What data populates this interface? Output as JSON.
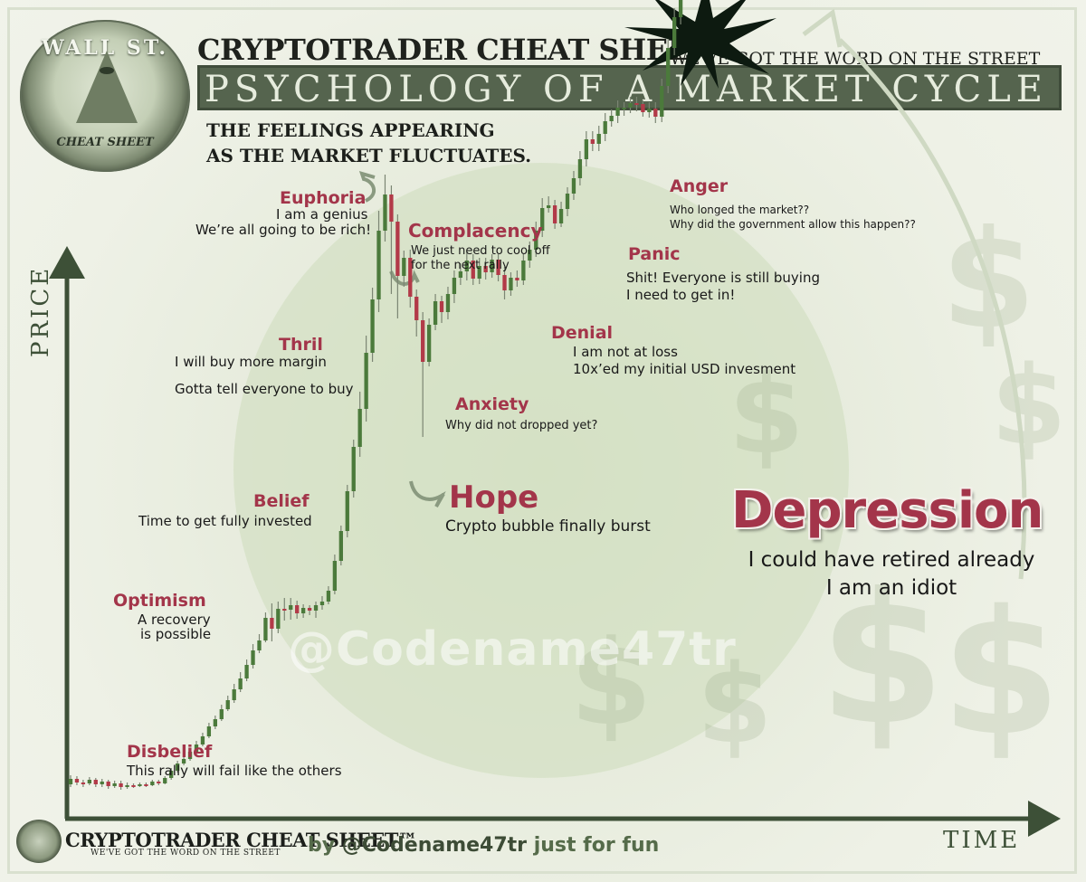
{
  "header": {
    "seal_top": "WALL ST.",
    "seal_bottom": "CHEAT SHEET",
    "title": "CRYPTOTRADER CHEAT SHEE",
    "tagline": "WE'VE GOT THE WORD ON THE STREET",
    "band": "PSYCHOLOGY OF A MARKET CYCLE",
    "subtitle_line1": "THE FEELINGS APPEARING",
    "subtitle_line2": "AS THE MARKET FLUCTUATES."
  },
  "colors": {
    "accent_label": "#a3354a",
    "candle_up": "#4b7a3b",
    "candle_down": "#b23a48",
    "axis": "#3d5037",
    "band": "#55644e"
  },
  "chart_data": {
    "type": "candlestick",
    "x_label": "TIME",
    "y_label": "PRICE",
    "x_ticks": [],
    "y_ticks": [],
    "grid": false,
    "legend": "none",
    "candles": [
      [
        38,
        44,
        35,
        48
      ],
      [
        44,
        40,
        37,
        47
      ],
      [
        40,
        39,
        35,
        43
      ],
      [
        39,
        43,
        37,
        46
      ],
      [
        43,
        38,
        35,
        45
      ],
      [
        38,
        41,
        35,
        44
      ],
      [
        41,
        36,
        33,
        43
      ],
      [
        36,
        39,
        34,
        42
      ],
      [
        39,
        35,
        32,
        42
      ],
      [
        35,
        37,
        33,
        40
      ],
      [
        37,
        36,
        34,
        39
      ],
      [
        36,
        38,
        35,
        40
      ],
      [
        38,
        37,
        35,
        40
      ],
      [
        37,
        41,
        36,
        43
      ],
      [
        41,
        39,
        37,
        43
      ],
      [
        39,
        45,
        38,
        47
      ],
      [
        45,
        53,
        43,
        56
      ],
      [
        53,
        61,
        51,
        64
      ],
      [
        61,
        66,
        59,
        68
      ],
      [
        66,
        74,
        64,
        77
      ],
      [
        74,
        82,
        72,
        86
      ],
      [
        82,
        91,
        80,
        95
      ],
      [
        91,
        102,
        89,
        106
      ],
      [
        102,
        110,
        99,
        114
      ],
      [
        110,
        121,
        108,
        126
      ],
      [
        121,
        131,
        119,
        136
      ],
      [
        131,
        143,
        128,
        149
      ],
      [
        143,
        155,
        140,
        162
      ],
      [
        155,
        170,
        152,
        176
      ],
      [
        170,
        186,
        166,
        193
      ],
      [
        186,
        197,
        183,
        204
      ],
      [
        197,
        222,
        195,
        228
      ],
      [
        222,
        210,
        196,
        238
      ],
      [
        210,
        232,
        205,
        240
      ],
      [
        232,
        231,
        219,
        244
      ],
      [
        231,
        236,
        220,
        244
      ],
      [
        236,
        227,
        221,
        241
      ],
      [
        227,
        233,
        222,
        237
      ],
      [
        233,
        230,
        225,
        236
      ],
      [
        230,
        236,
        222,
        240
      ],
      [
        236,
        240,
        231,
        246
      ],
      [
        240,
        252,
        237,
        257
      ],
      [
        252,
        285,
        248,
        292
      ],
      [
        285,
        318,
        280,
        324
      ],
      [
        318,
        362,
        311,
        369
      ],
      [
        362,
        411,
        355,
        419
      ],
      [
        411,
        453,
        400,
        472
      ],
      [
        453,
        515,
        439,
        534
      ],
      [
        515,
        574,
        505,
        587
      ],
      [
        574,
        650,
        560,
        672
      ],
      [
        650,
        690,
        638,
        712
      ],
      [
        690,
        660,
        580,
        700
      ],
      [
        660,
        600,
        553,
        668
      ],
      [
        600,
        620,
        588,
        628
      ],
      [
        620,
        577,
        565,
        629
      ],
      [
        577,
        551,
        533,
        585
      ],
      [
        551,
        505,
        422,
        560
      ],
      [
        505,
        546,
        500,
        553
      ],
      [
        546,
        572,
        540,
        580
      ],
      [
        572,
        560,
        548,
        578
      ],
      [
        560,
        580,
        552,
        588
      ],
      [
        580,
        598,
        570,
        606
      ],
      [
        598,
        605,
        590,
        614
      ],
      [
        605,
        617,
        595,
        626
      ],
      [
        617,
        597,
        590,
        624
      ],
      [
        597,
        611,
        591,
        620
      ],
      [
        611,
        604,
        596,
        620
      ],
      [
        604,
        618,
        598,
        624
      ],
      [
        618,
        601,
        594,
        624
      ],
      [
        601,
        584,
        574,
        610
      ],
      [
        584,
        598,
        578,
        604
      ],
      [
        598,
        595,
        588,
        606
      ],
      [
        595,
        617,
        590,
        624
      ],
      [
        617,
        629,
        609,
        638
      ],
      [
        629,
        650,
        621,
        660
      ],
      [
        650,
        675,
        643,
        686
      ],
      [
        675,
        678,
        670,
        688
      ],
      [
        678,
        658,
        652,
        684
      ],
      [
        658,
        674,
        654,
        682
      ],
      [
        674,
        691,
        666,
        698
      ],
      [
        691,
        708,
        684,
        716
      ],
      [
        708,
        729,
        700,
        738
      ],
      [
        729,
        751,
        721,
        760
      ],
      [
        751,
        746,
        738,
        760
      ],
      [
        746,
        757,
        738,
        766
      ],
      [
        757,
        771,
        749,
        780
      ],
      [
        771,
        777,
        765,
        784
      ],
      [
        777,
        786,
        769,
        794
      ],
      [
        786,
        786,
        777,
        792
      ],
      [
        786,
        791,
        780,
        798
      ],
      [
        791,
        790,
        782,
        798
      ],
      [
        790,
        781,
        776,
        794
      ],
      [
        781,
        785,
        775,
        792
      ],
      [
        785,
        776,
        769,
        792
      ],
      [
        776,
        810,
        770,
        818
      ],
      [
        810,
        852,
        802,
        862
      ],
      [
        852,
        886,
        844,
        896
      ],
      [
        886,
        924,
        878,
        935
      ],
      [
        924,
        978,
        912,
        995
      ],
      [
        978,
        1060,
        962,
        1080
      ]
    ],
    "phases": [
      {
        "label": "Disbelief",
        "quote": "This rally will fail like the others"
      },
      {
        "label": "Optimism",
        "quote": "A recovery is possible"
      },
      {
        "label": "Belief",
        "quote": "Time to get fully invested"
      },
      {
        "label": "Thril",
        "quote": "I will buy more margin / Gotta tell everyone to buy"
      },
      {
        "label": "Euphoria",
        "quote": "I am a genius / We're all going to be rich!"
      },
      {
        "label": "Complacency",
        "quote": "We just need to cool off for the next rally"
      },
      {
        "label": "Anxiety",
        "quote": "Why did not dropped yet?"
      },
      {
        "label": "Hope",
        "quote": "Crypto bubble finally burst"
      },
      {
        "label": "Denial",
        "quote": "I am not at loss / 10x'ed my initial USD invesment"
      },
      {
        "label": "Panic",
        "quote": "Shit! Everyone is still buying / I need to get in!"
      },
      {
        "label": "Anger",
        "quote": "Who longed the market?? / Why did the government allow this happen??"
      },
      {
        "label": "Depression",
        "quote": "I could have retired already / I am an idiot"
      }
    ]
  },
  "labels": {
    "disbelief": {
      "title": "Disbelief",
      "line1": "This rally will fail like the others"
    },
    "optimism": {
      "title": "Optimism",
      "line1": "A recovery",
      "line2": "is possible"
    },
    "belief": {
      "title": "Belief",
      "line1": "Time to get fully invested"
    },
    "thril": {
      "title": "Thril",
      "line1": "I will buy more margin",
      "line2": "Gotta tell everyone to buy"
    },
    "euphoria": {
      "title": "Euphoria",
      "line1": "I am a genius",
      "line2": "We’re all going to be rich!"
    },
    "complacency": {
      "title": "Complacency",
      "line1": "We just need to cool off",
      "line2": "for the next rally"
    },
    "anxiety": {
      "title": "Anxiety",
      "line1": "Why did not dropped yet?"
    },
    "hope": {
      "title": "Hope",
      "line1": "Crypto bubble finally burst"
    },
    "denial": {
      "title": "Denial",
      "line1": "I am not at loss",
      "line2": "10x’ed my initial USD invesment"
    },
    "panic": {
      "title": "Panic",
      "line1": "Shit! Everyone is still buying",
      "line2": "I need to get in!"
    },
    "anger": {
      "title": "Anger",
      "line1": "Who longed the market??",
      "line2": "Why did the government allow this happen??"
    },
    "depression": {
      "title": "Depression",
      "line1": "I could have retired already",
      "line2": "I am an idiot"
    }
  },
  "watermark": "@Codename47tr",
  "footer": {
    "title": "CRYPTOTRADER CHEAT SHEET™",
    "tagline": "WE'VE GOT THE WORD ON THE STREET",
    "by": "by",
    "handle": "@Codename47tr",
    "fun": "just for fun"
  }
}
